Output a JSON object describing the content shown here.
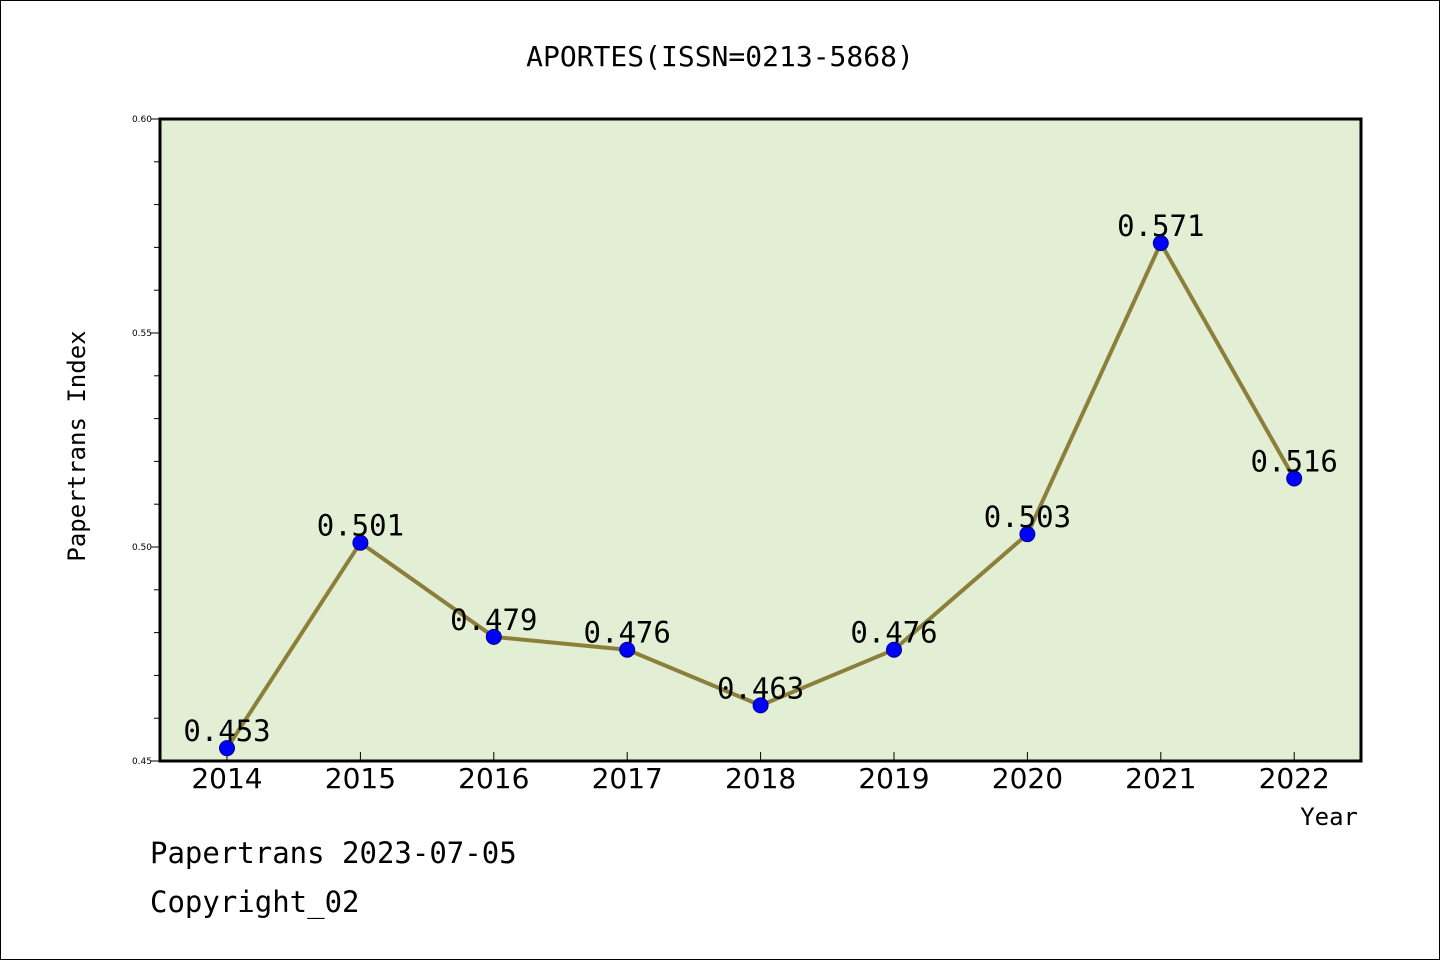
{
  "chart_data": {
    "type": "line",
    "title": "APORTES(ISSN=0213-5868)",
    "xlabel": "Year",
    "ylabel": "Papertrans Index",
    "categories": [
      "2014",
      "2015",
      "2016",
      "2017",
      "2018",
      "2019",
      "2020",
      "2021",
      "2022"
    ],
    "series": [
      {
        "values": [
          0.453,
          0.501,
          0.479,
          0.476,
          0.463,
          0.476,
          0.503,
          0.571,
          0.516
        ],
        "data_labels": [
          "0.453",
          "0.501",
          "0.479",
          "0.476",
          "0.463",
          "0.476",
          "0.503",
          "0.571",
          "0.516"
        ]
      }
    ],
    "ylim": [
      0.45,
      0.6
    ],
    "yticks": [
      "0.45",
      "0.50",
      "0.55",
      "0.60"
    ],
    "ytick_values": [
      0.45,
      0.5,
      0.55,
      0.6
    ],
    "grid": false,
    "colors": {
      "plot_background": "#e2efd5",
      "line": "#8c7f3a",
      "marker": "#0000ff"
    }
  },
  "footer": {
    "line1": "Papertrans 2023-07-05",
    "line2": "Copyright_02"
  }
}
